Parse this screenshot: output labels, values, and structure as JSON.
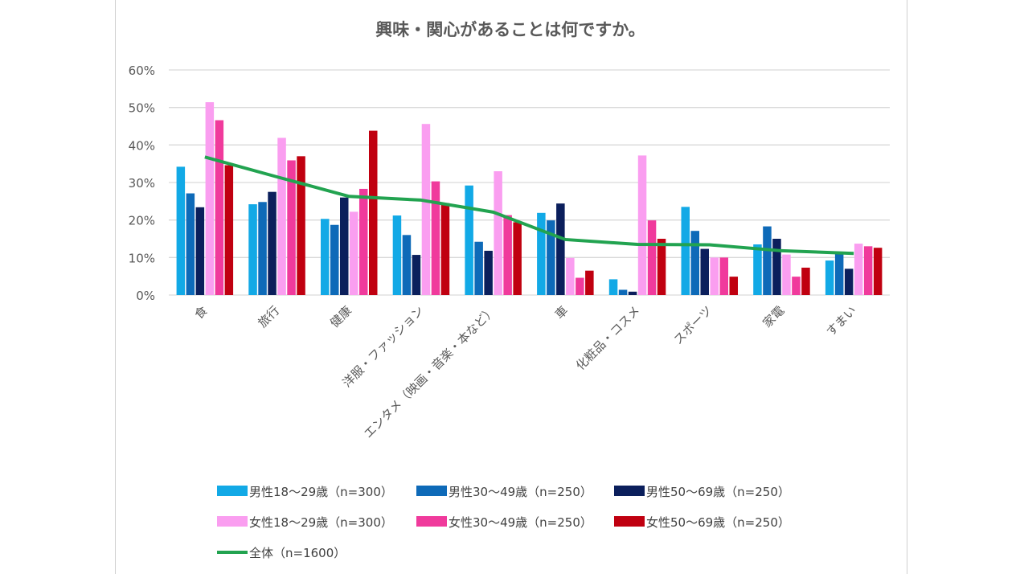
{
  "chart_data": {
    "type": "bar",
    "title": "興味・関心があることは何ですか。",
    "categories": [
      "食",
      "旅行",
      "健康",
      "洋服・ファッション",
      "エンタメ（映画・音楽・本など）",
      "車",
      "化粧品・コスメ",
      "スポーツ",
      "家電",
      "すまい"
    ],
    "ylim": [
      0,
      60
    ],
    "yticks": [
      "0%",
      "10%",
      "20%",
      "30%",
      "40%",
      "50%",
      "60%"
    ],
    "grid": true,
    "legend_position": "bottom",
    "series": [
      {
        "name": "男性18～29歳（n=300）",
        "type": "bar",
        "color": "#12a9e6",
        "values": [
          34.2,
          24.2,
          20.3,
          21.2,
          29.2,
          21.9,
          4.2,
          23.5,
          13.5,
          9.2
        ]
      },
      {
        "name": "男性30～49歳（n=250）",
        "type": "bar",
        "color": "#0e6ab8",
        "values": [
          27.1,
          24.8,
          18.7,
          16.0,
          14.2,
          19.9,
          1.4,
          17.1,
          18.3,
          11.2
        ]
      },
      {
        "name": "男性50～69歳（n=250）",
        "type": "bar",
        "color": "#0b1f5c",
        "values": [
          23.4,
          27.5,
          26.0,
          10.7,
          11.8,
          24.4,
          0.9,
          12.3,
          15.0,
          7.0
        ]
      },
      {
        "name": "女性18～29歳（n=300）",
        "type": "bar",
        "color": "#fa9ef0",
        "values": [
          51.4,
          41.9,
          22.2,
          45.6,
          33.0,
          9.9,
          37.2,
          10.0,
          10.8,
          13.7
        ]
      },
      {
        "name": "女性30～49歳（n=250）",
        "type": "bar",
        "color": "#f03a9c",
        "values": [
          46.6,
          35.9,
          28.3,
          30.3,
          21.3,
          4.6,
          19.9,
          10.0,
          4.9,
          13.0
        ]
      },
      {
        "name": "女性50～69歳（n=250）",
        "type": "bar",
        "color": "#c00010",
        "values": [
          34.6,
          37.0,
          43.8,
          24.5,
          19.4,
          6.5,
          15.0,
          4.9,
          7.3,
          12.6
        ]
      },
      {
        "name": "全体（n=1600）",
        "type": "line",
        "color": "#22a350",
        "values": [
          36.8,
          31.5,
          26.3,
          25.3,
          22.1,
          14.8,
          13.5,
          13.4,
          11.8,
          11.1
        ]
      }
    ]
  }
}
